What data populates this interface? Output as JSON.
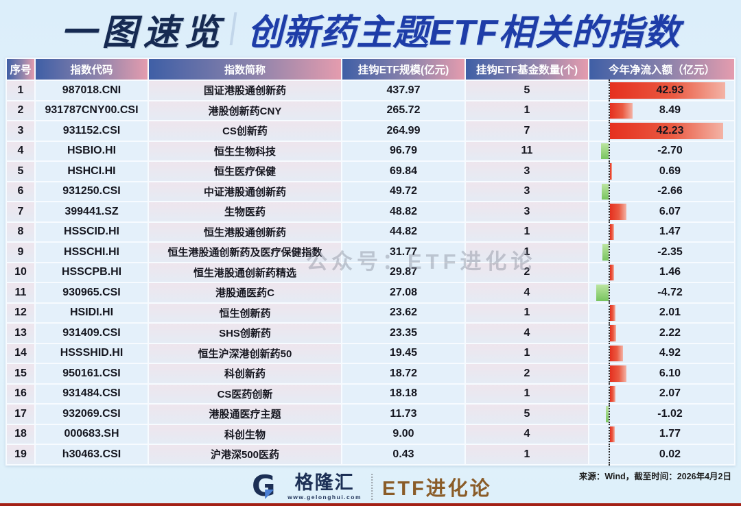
{
  "page": {
    "title_badge": "一图速览",
    "title_main": "创新药主题ETF相关的指数",
    "watermark": "公众号：ETF进化论"
  },
  "footer": {
    "source_note": "来源：Wind，截至时间：2026年4月2日",
    "brand_name": "格隆汇",
    "brand_site": "www.gelonghui.com",
    "brand_sub": "ETF进化论"
  },
  "colors": {
    "title_badge": "#162a52",
    "title_main": "#1e3da8",
    "header_gradient_left": "#3f5fa6",
    "header_gradient_right": "#e49cae",
    "cell_blue": "#e4f0fa",
    "cell_pink": "#ece5ee",
    "positive_bar_red": "#e5301f",
    "negative_bar_green": "#77c45f",
    "page_background": "#e0f1fb",
    "bottom_line": "#a32015"
  },
  "chart_data": {
    "type": "table",
    "title": "一图速览｜创新药主题ETF相关的指数",
    "columns": [
      "序号",
      "指数代码",
      "指数简称",
      "挂钩ETF规模(亿元)",
      "挂钩ETF基金数量(个)",
      "今年净流入额（亿元）"
    ],
    "bar_column": "今年净流入额（亿元）",
    "bar_style": "red bars extend right of dotted zero axis for positive values, green bars extend left for negative values",
    "bar_max_abs": 42.93,
    "rows": [
      {
        "no": "1",
        "code": "987018.CNI",
        "name": "国证港股通创新药",
        "scale": "437.97",
        "funds": "5",
        "net": "42.93",
        "net_value": 42.93
      },
      {
        "no": "2",
        "code": "931787CNY00.CSI",
        "name": "港股创新药CNY",
        "scale": "265.72",
        "funds": "1",
        "net": "8.49",
        "net_value": 8.49
      },
      {
        "no": "3",
        "code": "931152.CSI",
        "name": "CS创新药",
        "scale": "264.99",
        "funds": "7",
        "net": "42.23",
        "net_value": 42.23
      },
      {
        "no": "4",
        "code": "HSBIO.HI",
        "name": "恒生生物科技",
        "scale": "96.79",
        "funds": "11",
        "net": "-2.70",
        "net_value": -2.7
      },
      {
        "no": "5",
        "code": "HSHCI.HI",
        "name": "恒生医疗保健",
        "scale": "69.84",
        "funds": "3",
        "net": "0.69",
        "net_value": 0.69
      },
      {
        "no": "6",
        "code": "931250.CSI",
        "name": "中证港股通创新药",
        "scale": "49.72",
        "funds": "3",
        "net": "-2.66",
        "net_value": -2.66
      },
      {
        "no": "7",
        "code": "399441.SZ",
        "name": "生物医药",
        "scale": "48.82",
        "funds": "3",
        "net": "6.07",
        "net_value": 6.07
      },
      {
        "no": "8",
        "code": "HSSCID.HI",
        "name": "恒生港股通创新药",
        "scale": "44.82",
        "funds": "1",
        "net": "1.47",
        "net_value": 1.47
      },
      {
        "no": "9",
        "code": "HSSCHI.HI",
        "name": "恒生港股通创新药及医疗保健指数",
        "scale": "31.77",
        "funds": "1",
        "net": "-2.35",
        "net_value": -2.35
      },
      {
        "no": "10",
        "code": "HSSCPB.HI",
        "name": "恒生港股通创新药精选",
        "scale": "29.87",
        "funds": "2",
        "net": "1.46",
        "net_value": 1.46
      },
      {
        "no": "11",
        "code": "930965.CSI",
        "name": "港股通医药C",
        "scale": "27.08",
        "funds": "4",
        "net": "-4.72",
        "net_value": -4.72
      },
      {
        "no": "12",
        "code": "HSIDI.HI",
        "name": "恒生创新药",
        "scale": "23.62",
        "funds": "1",
        "net": "2.01",
        "net_value": 2.01
      },
      {
        "no": "13",
        "code": "931409.CSI",
        "name": "SHS创新药",
        "scale": "23.35",
        "funds": "4",
        "net": "2.22",
        "net_value": 2.22
      },
      {
        "no": "14",
        "code": "HSSSHID.HI",
        "name": "恒生沪深港创新药50",
        "scale": "19.45",
        "funds": "1",
        "net": "4.92",
        "net_value": 4.92
      },
      {
        "no": "15",
        "code": "950161.CSI",
        "name": "科创新药",
        "scale": "18.72",
        "funds": "2",
        "net": "6.10",
        "net_value": 6.1
      },
      {
        "no": "16",
        "code": "931484.CSI",
        "name": "CS医药创新",
        "scale": "18.18",
        "funds": "1",
        "net": "2.07",
        "net_value": 2.07
      },
      {
        "no": "17",
        "code": "932069.CSI",
        "name": "港股通医疗主题",
        "scale": "11.73",
        "funds": "5",
        "net": "-1.02",
        "net_value": -1.02
      },
      {
        "no": "18",
        "code": "000683.SH",
        "name": "科创生物",
        "scale": "9.00",
        "funds": "4",
        "net": "1.77",
        "net_value": 1.77
      },
      {
        "no": "19",
        "code": "h30463.CSI",
        "name": "沪港深500医药",
        "scale": "0.43",
        "funds": "1",
        "net": "0.02",
        "net_value": 0.02
      }
    ]
  }
}
